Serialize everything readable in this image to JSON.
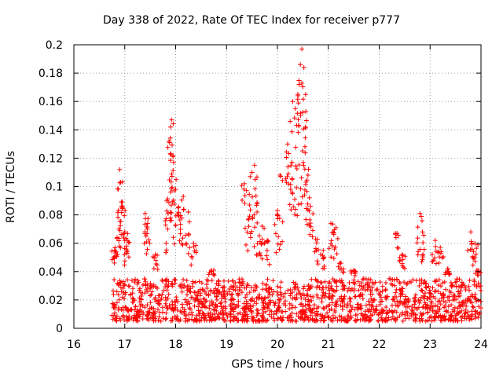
{
  "chart_data": {
    "type": "scatter",
    "title": "Day 338 of 2022, Rate Of TEC Index for receiver p777",
    "xlabel": "GPS time / hours",
    "ylabel": "ROTI / TECUs",
    "xlim": [
      16,
      24
    ],
    "ylim": [
      0,
      0.2
    ],
    "x_ticks": [
      16,
      17,
      18,
      19,
      20,
      21,
      22,
      23,
      24
    ],
    "y_ticks": [
      0,
      0.02,
      0.04,
      0.06,
      0.08,
      0.1,
      0.12,
      0.14,
      0.16,
      0.18,
      0.2
    ],
    "grid": true,
    "marker": "+",
    "color": "#ff0000",
    "series": [
      {
        "name": "ROTI",
        "x_range": [
          16.75,
          24.0
        ],
        "sample_points": [
          [
            16.8,
            0.055
          ],
          [
            16.85,
            0.064
          ],
          [
            16.9,
            0.112
          ],
          [
            16.92,
            0.103
          ],
          [
            16.95,
            0.086
          ],
          [
            17.0,
            0.068
          ],
          [
            17.05,
            0.062
          ],
          [
            17.4,
            0.081
          ],
          [
            17.45,
            0.074
          ],
          [
            17.6,
            0.052
          ],
          [
            17.85,
            0.081
          ],
          [
            17.88,
            0.131
          ],
          [
            17.9,
            0.142
          ],
          [
            17.92,
            0.147
          ],
          [
            17.95,
            0.122
          ],
          [
            18.0,
            0.098
          ],
          [
            18.05,
            0.085
          ],
          [
            18.15,
            0.093
          ],
          [
            18.25,
            0.082
          ],
          [
            18.35,
            0.06
          ],
          [
            18.7,
            0.041
          ],
          [
            19.35,
            0.102
          ],
          [
            19.45,
            0.087
          ],
          [
            19.5,
            0.11
          ],
          [
            19.55,
            0.115
          ],
          [
            19.6,
            0.082
          ],
          [
            19.7,
            0.072
          ],
          [
            19.8,
            0.062
          ],
          [
            20.0,
            0.083
          ],
          [
            20.05,
            0.108
          ],
          [
            20.2,
            0.13
          ],
          [
            20.25,
            0.146
          ],
          [
            20.3,
            0.16
          ],
          [
            20.35,
            0.155
          ],
          [
            20.4,
            0.165
          ],
          [
            20.45,
            0.186
          ],
          [
            20.48,
            0.197
          ],
          [
            20.52,
            0.184
          ],
          [
            20.55,
            0.142
          ],
          [
            20.6,
            0.108
          ],
          [
            20.65,
            0.086
          ],
          [
            20.75,
            0.063
          ],
          [
            20.9,
            0.055
          ],
          [
            21.05,
            0.074
          ],
          [
            21.15,
            0.071
          ],
          [
            21.25,
            0.046
          ],
          [
            21.5,
            0.041
          ],
          [
            22.35,
            0.067
          ],
          [
            22.45,
            0.052
          ],
          [
            22.8,
            0.081
          ],
          [
            22.85,
            0.068
          ],
          [
            23.1,
            0.062
          ],
          [
            23.2,
            0.057
          ],
          [
            23.35,
            0.042
          ],
          [
            23.8,
            0.068
          ],
          [
            23.88,
            0.06
          ],
          [
            23.95,
            0.041
          ]
        ],
        "baseline_range": [
          0.005,
          0.035
        ]
      }
    ]
  }
}
